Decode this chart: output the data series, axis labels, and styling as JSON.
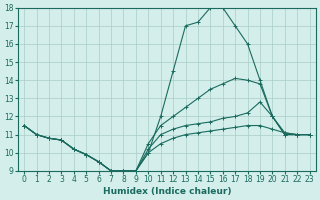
{
  "xlabel": "Humidex (Indice chaleur)",
  "xlim": [
    -0.5,
    23.5
  ],
  "ylim": [
    9,
    18
  ],
  "yticks": [
    9,
    10,
    11,
    12,
    13,
    14,
    15,
    16,
    17,
    18
  ],
  "xticks": [
    0,
    1,
    2,
    3,
    4,
    5,
    6,
    7,
    8,
    9,
    10,
    11,
    12,
    13,
    14,
    15,
    16,
    17,
    18,
    19,
    20,
    21,
    22,
    23
  ],
  "bg_color": "#d4eeeb",
  "grid_color": "#aaccc7",
  "line_color": "#1a6b5e",
  "lines": [
    {
      "x": [
        0,
        1,
        2,
        3,
        4,
        5,
        6,
        7,
        8,
        9,
        10,
        11,
        12,
        13,
        14,
        15,
        16,
        17,
        18,
        19,
        20,
        21,
        22,
        23
      ],
      "y": [
        11.5,
        11.0,
        10.8,
        10.7,
        10.2,
        9.9,
        9.5,
        9.0,
        9.0,
        9.0,
        10.0,
        12.0,
        14.5,
        17.0,
        17.2,
        18.0,
        18.0,
        17.0,
        16.0,
        14.0,
        12.0,
        11.0,
        11.0,
        11.0
      ]
    },
    {
      "x": [
        0,
        1,
        2,
        3,
        4,
        5,
        6,
        7,
        8,
        9,
        10,
        11,
        12,
        13,
        14,
        15,
        16,
        17,
        18,
        19,
        20,
        21,
        22,
        23
      ],
      "y": [
        11.5,
        11.0,
        10.8,
        10.7,
        10.2,
        9.9,
        9.5,
        9.0,
        9.0,
        9.0,
        10.5,
        11.5,
        12.0,
        12.5,
        13.0,
        13.5,
        13.8,
        14.1,
        14.0,
        13.8,
        12.0,
        11.0,
        11.0,
        11.0
      ]
    },
    {
      "x": [
        0,
        1,
        2,
        3,
        4,
        5,
        6,
        7,
        8,
        9,
        10,
        11,
        12,
        13,
        14,
        15,
        16,
        17,
        18,
        19,
        20,
        21,
        22,
        23
      ],
      "y": [
        11.5,
        11.0,
        10.8,
        10.7,
        10.2,
        9.9,
        9.5,
        9.0,
        9.0,
        9.0,
        10.2,
        11.0,
        11.3,
        11.5,
        11.6,
        11.7,
        11.9,
        12.0,
        12.2,
        12.8,
        12.0,
        11.1,
        11.0,
        11.0
      ]
    },
    {
      "x": [
        0,
        1,
        2,
        3,
        4,
        5,
        6,
        7,
        8,
        9,
        10,
        11,
        12,
        13,
        14,
        15,
        16,
        17,
        18,
        19,
        20,
        21,
        22,
        23
      ],
      "y": [
        11.5,
        11.0,
        10.8,
        10.7,
        10.2,
        9.9,
        9.5,
        9.0,
        9.0,
        9.0,
        10.0,
        10.5,
        10.8,
        11.0,
        11.1,
        11.2,
        11.3,
        11.4,
        11.5,
        11.5,
        11.3,
        11.1,
        11.0,
        11.0
      ]
    }
  ]
}
